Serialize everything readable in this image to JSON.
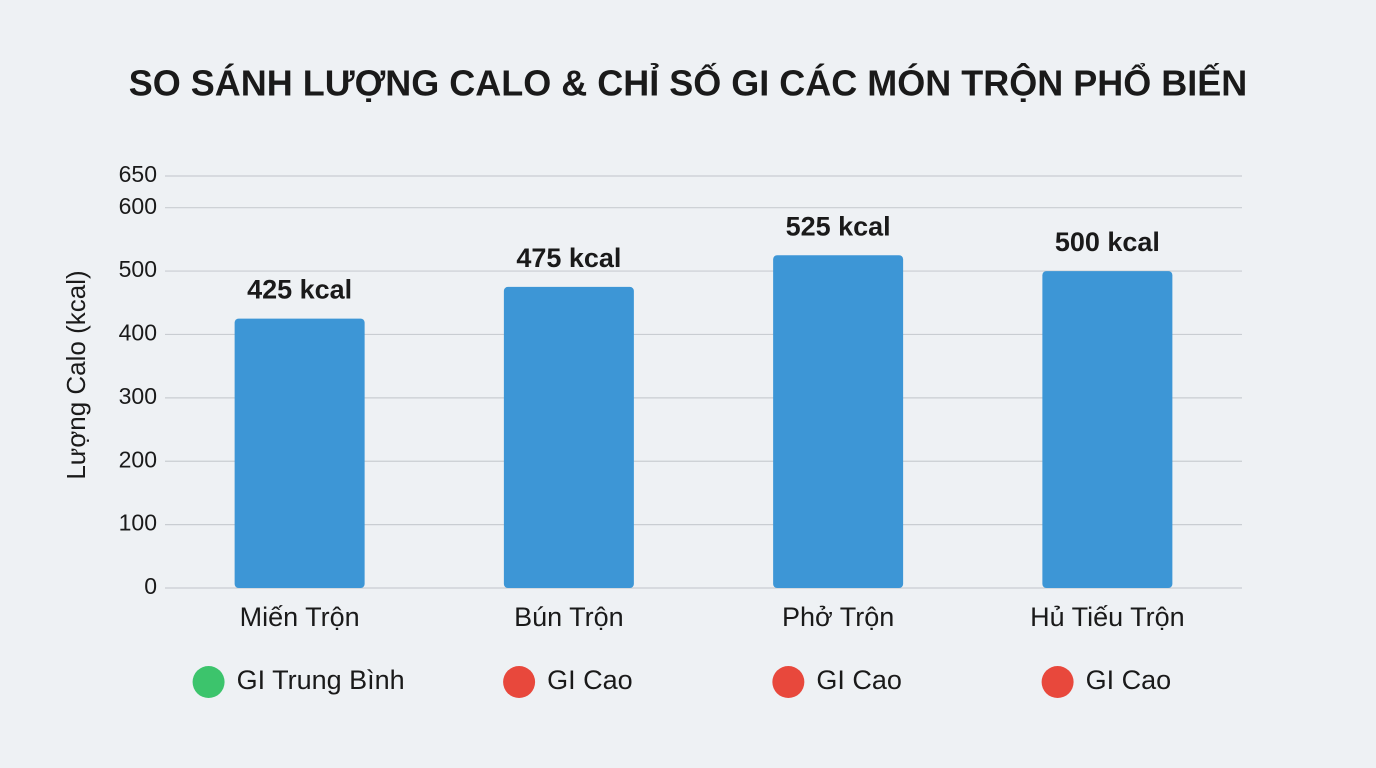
{
  "chart_data": {
    "type": "bar",
    "title": "SO SÁNH LƯỢNG CALO & CHỈ SỐ GI CÁC MÓN TRỘN PHỔ BIẾN",
    "y_label": "Lượng Calo (kcal)",
    "categories": [
      "Miến Trộn",
      "Bún Trộn",
      "Phở Trộn",
      "Hủ Tiếu Trộn"
    ],
    "values": [
      425,
      475,
      525,
      500
    ],
    "value_labels": [
      "425 kcal",
      "475 kcal",
      "525 kcal",
      "500 kcal"
    ],
    "color": "#3d96d6",
    "gi_labels": [
      "GI Trung Bình",
      "GI Cao",
      "GI Cao",
      "GI Cao"
    ],
    "gi_colors": [
      "#3cc46c",
      "#e8483c",
      "#e8483c",
      "#e8483c"
    ],
    "ylim": [
      0,
      650
    ],
    "yticks": [
      0,
      100,
      200,
      300,
      400,
      500,
      600,
      650
    ],
    "grid": true
  }
}
